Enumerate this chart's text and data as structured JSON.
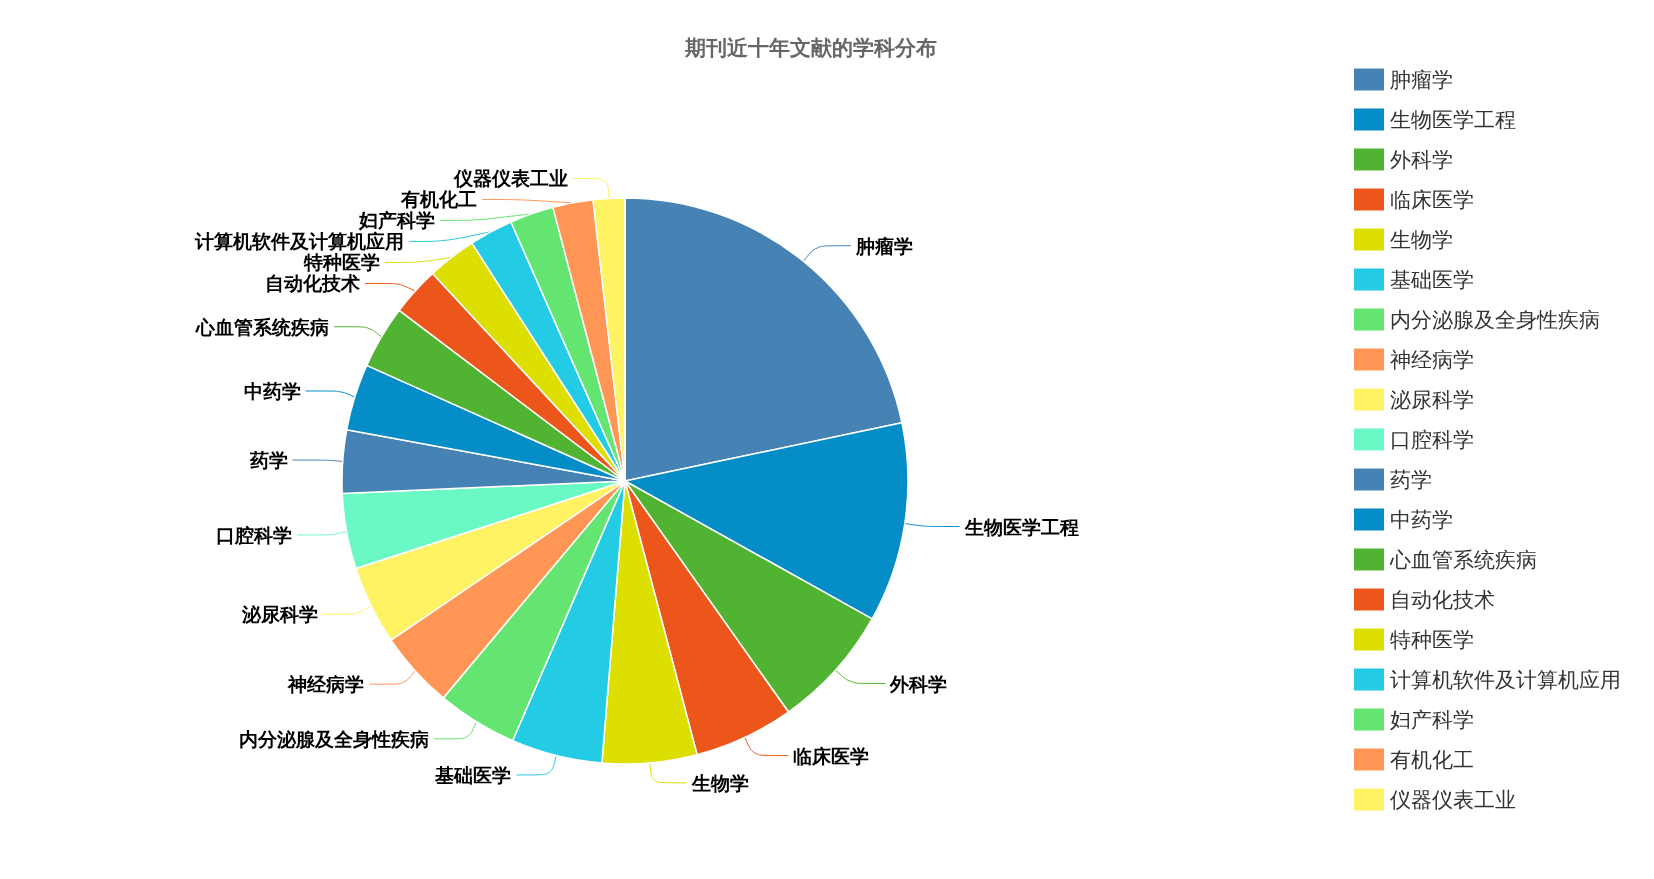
{
  "chart_data": {
    "type": "pie",
    "title": "期刊近十年文献的学科分布",
    "categories": [
      "肿瘤学",
      "生物医学工程",
      "外科学",
      "临床医学",
      "生物学",
      "基础医学",
      "内分泌腺及全身性疾病",
      "神经病学",
      "泌尿科学",
      "口腔科学",
      "药学",
      "中药学",
      "心血管系统疾病",
      "自动化技术",
      "特种医学",
      "计算机软件及计算机应用",
      "妇产科学",
      "有机化工",
      "仪器仪表工业"
    ],
    "values": [
      21.7,
      11.4,
      7.1,
      5.7,
      5.4,
      5.2,
      4.6,
      4.4,
      4.5,
      4.3,
      3.6,
      3.8,
      3.6,
      2.8,
      2.8,
      2.5,
      2.5,
      2.3,
      1.8
    ],
    "colors": [
      "#4682b4",
      "#058dc7",
      "#50b432",
      "#ed561b",
      "#dddf00",
      "#24cbe5",
      "#64e572",
      "#ff9655",
      "#fff263",
      "#6af9c4",
      "#4682b4",
      "#058dc7",
      "#50b432",
      "#ed561b",
      "#dddf00",
      "#24cbe5",
      "#64e572",
      "#ff9655",
      "#fff263"
    ],
    "legend": "right"
  }
}
